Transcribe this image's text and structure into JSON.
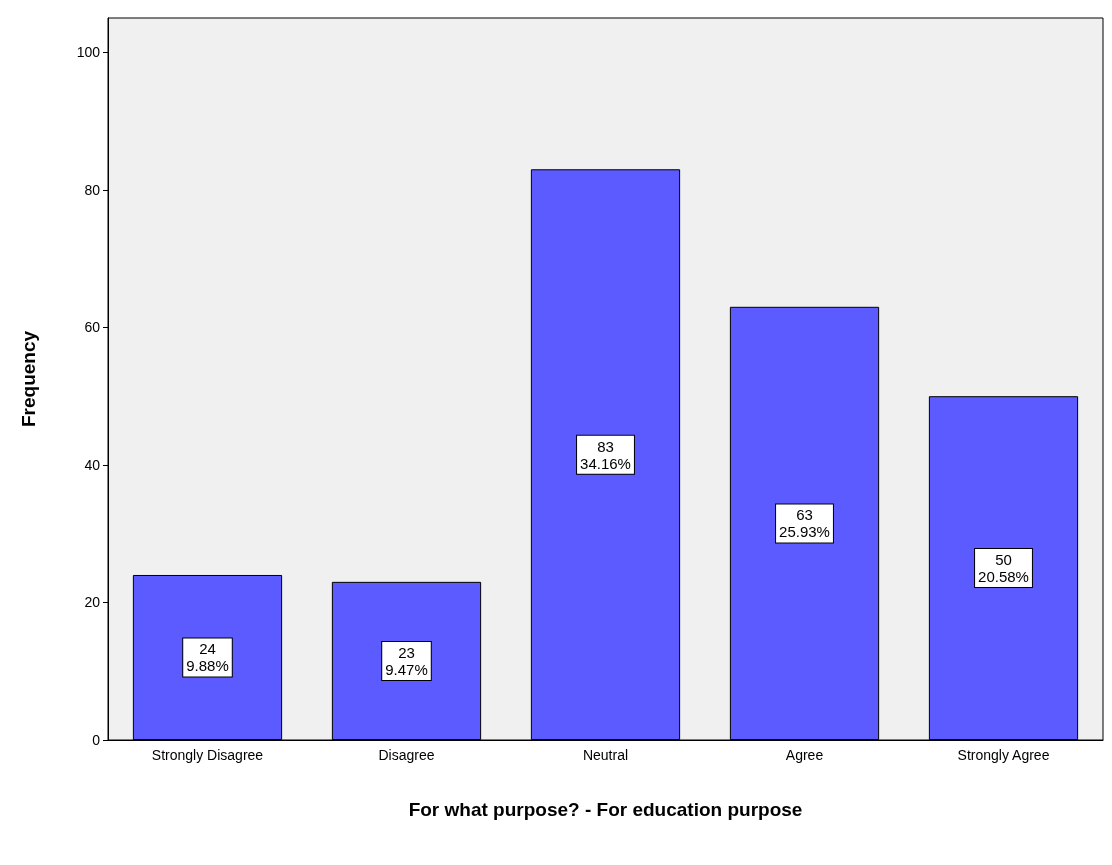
{
  "chart_data": {
    "type": "bar",
    "xlabel": "For what purpose? - For education purpose",
    "ylabel": "Frequency",
    "categories": [
      "Strongly Disagree",
      "Disagree",
      "Neutral",
      "Agree",
      "Strongly Agree"
    ],
    "values": [
      24,
      23,
      83,
      63,
      50
    ],
    "value_labels": [
      "24\n9.88%",
      "23\n9.47%",
      "83\n34.16%",
      "63\n25.93%",
      "50\n20.58%"
    ],
    "color": "#5b5bff",
    "ylim": [
      0,
      105
    ],
    "yticks": [
      0,
      20,
      40,
      60,
      80,
      100
    ],
    "grid": false
  }
}
